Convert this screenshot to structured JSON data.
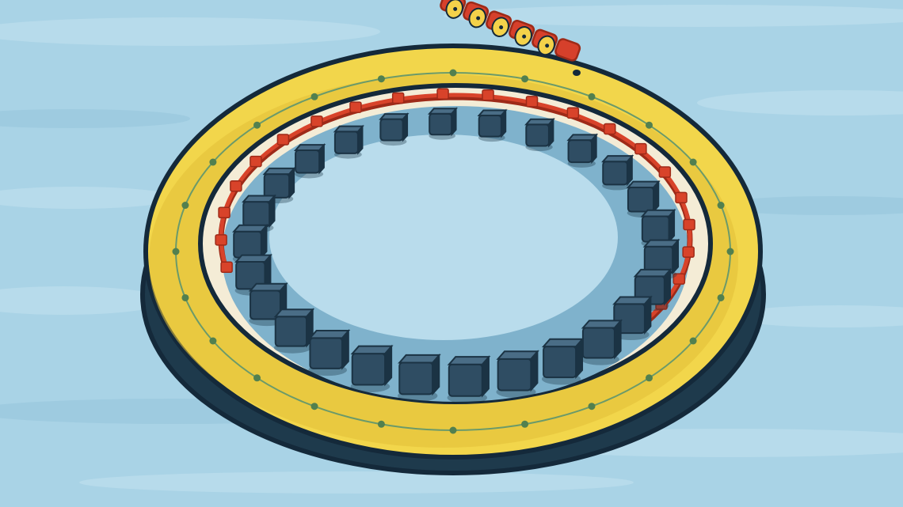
{
  "illustration": {
    "subject": "ring-accelerator",
    "colors": {
      "sky": "#a9d3e6",
      "sky_streak": "#c2e1ef",
      "sky_streak_dark": "#95c4da",
      "ring_top": "#f2d64b",
      "ring_top_shade": "#e2c038",
      "ring_side": "#1e3a4c",
      "ring_outline": "#14293a",
      "inner_wall": "#f4ecd6",
      "track_line": "#6b9a6a",
      "track_dot": "#52804f",
      "inner_floor": "#b9dcec",
      "inner_shadow": "#7fb2cc",
      "magnet_front": "#2f4d63",
      "magnet_top": "#4a6d86",
      "magnet_dark": "#1b3344",
      "beam": "#d8432a",
      "beam_dark": "#9e2a18",
      "particle_red": "#d6402b",
      "particle_yellow": "#f4d24a"
    },
    "counts": {
      "magnet_count": 26,
      "beam_marker_count": 22,
      "track_dot_count": 24,
      "incoming_particle_count": 6
    }
  }
}
